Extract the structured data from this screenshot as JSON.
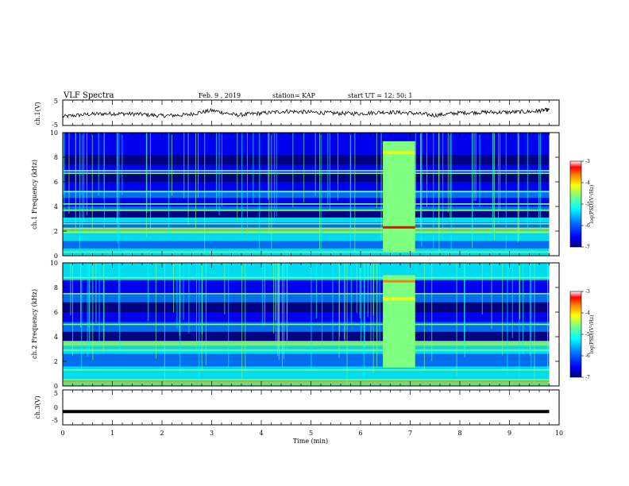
{
  "header": {
    "title": "VLF Spectra",
    "date": "Feb. 9  , 2019",
    "station": "station= KAP",
    "start_time": "start  UT  =   12: 50: 1"
  },
  "chart_data": [
    {
      "type": "line",
      "panel": "ch1-voltage",
      "ylabel": "ch.1(V)",
      "ylim": [
        -5,
        5
      ],
      "yticks": [
        "5",
        "-5"
      ],
      "x": [
        0,
        0.5,
        1,
        1.5,
        2,
        2.5,
        3,
        3.5,
        4,
        4.5,
        5,
        5.5,
        6,
        6.5,
        7,
        7.5,
        8,
        8.5,
        9,
        9.5,
        9.8
      ],
      "y": [
        -1.5,
        -0.6,
        -0.3,
        -0.5,
        -1.2,
        -0.8,
        0.9,
        -0.9,
        -0.2,
        0.6,
        0.2,
        -0.2,
        -0.3,
        0.3,
        -0.1,
        -1.0,
        0.0,
        0.2,
        0.2,
        0.5,
        1.2
      ]
    },
    {
      "type": "heatmap",
      "panel": "ch1-spectrogram",
      "ylabel": "ch.1\nFrequency (kHz)",
      "ylim": [
        0,
        10
      ],
      "yticks": [
        "0",
        "2",
        "4",
        "6",
        "8",
        "10"
      ],
      "colorbar": {
        "label": "log(PSD)(V²/Hz)",
        "range": [
          -7,
          -3
        ],
        "ticks": [
          "-3",
          "-4",
          "-5",
          "-6",
          "-7"
        ]
      },
      "bright_interval_min": [
        6.45,
        7.1
      ]
    },
    {
      "type": "heatmap",
      "panel": "ch2-spectrogram",
      "ylabel": "ch.2\nFrequency (kHz)",
      "ylim": [
        0,
        10
      ],
      "yticks": [
        "0",
        "2",
        "4",
        "6",
        "8",
        "10"
      ],
      "colorbar": {
        "label": "log(PSD)(V²/Hz)",
        "range": [
          -7,
          -3
        ],
        "ticks": [
          "-3",
          "-4",
          "-5",
          "-6",
          "-7"
        ]
      },
      "bright_interval_min": [
        6.45,
        7.1
      ]
    },
    {
      "type": "line",
      "panel": "ch3-voltage",
      "ylabel": "ch.3(V)",
      "ylim": [
        -5,
        5
      ],
      "yticks": [
        "5",
        "0",
        "-5"
      ],
      "x": [
        0,
        9.8
      ],
      "y": [
        -1.2,
        -1.2
      ]
    }
  ],
  "xaxis": {
    "label": "Time (min)",
    "range": [
      0,
      10
    ],
    "ticks": [
      "0",
      "1",
      "2",
      "3",
      "4",
      "5",
      "6",
      "7",
      "8",
      "9",
      "10"
    ]
  },
  "colors": {
    "line": "#000000",
    "colormap": [
      "#00007f",
      "#0000ff",
      "#007fff",
      "#00ffff",
      "#7fff7f",
      "#ffff00",
      "#ff7f00",
      "#ff0000",
      "#ffffff"
    ]
  }
}
